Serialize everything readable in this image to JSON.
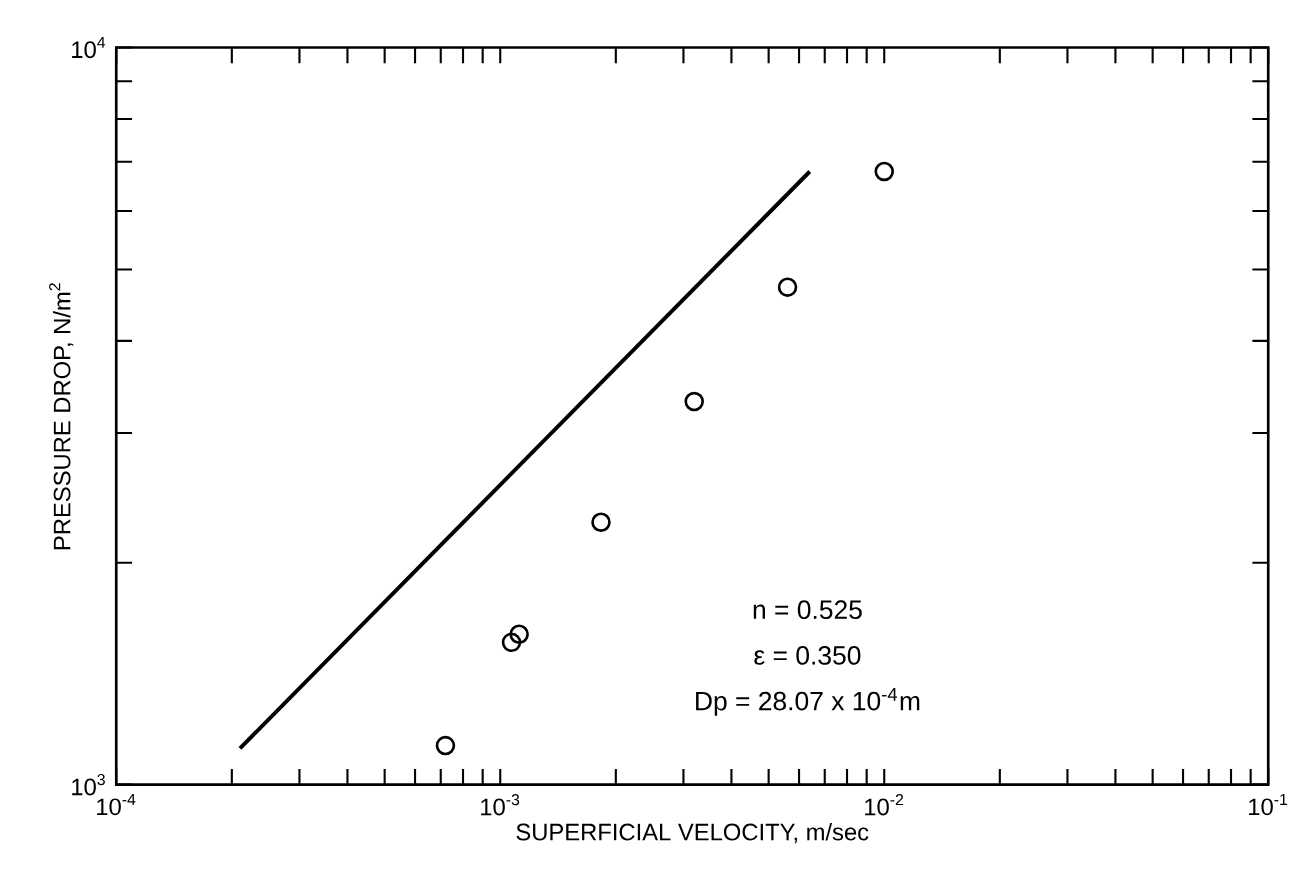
{
  "chart_data": {
    "type": "scatter",
    "xlabel": "SUPERFICIAL VELOCITY, m/sec",
    "ylabel": "PRESSURE DROP, N/m$^{2}$",
    "log": "xy",
    "xlim": [
      0.0001,
      0.1
    ],
    "ylim": [
      1000,
      10000
    ],
    "xticks": [
      {
        "value": 0.0001,
        "label": "10$^{-4}$"
      },
      {
        "value": 0.0002,
        "label": null
      },
      {
        "value": 0.0003,
        "label": null
      },
      {
        "value": 0.0004,
        "label": null
      },
      {
        "value": 0.0005,
        "label": null
      },
      {
        "value": 0.0006,
        "label": null
      },
      {
        "value": 0.0007,
        "label": null
      },
      {
        "value": 0.0008,
        "label": null
      },
      {
        "value": 0.0009,
        "label": null
      },
      {
        "value": 0.001,
        "label": "10$^{-3}$"
      },
      {
        "value": 0.002,
        "label": null
      },
      {
        "value": 0.003,
        "label": null
      },
      {
        "value": 0.004,
        "label": null
      },
      {
        "value": 0.005,
        "label": null
      },
      {
        "value": 0.006,
        "label": null
      },
      {
        "value": 0.007,
        "label": null
      },
      {
        "value": 0.008,
        "label": null
      },
      {
        "value": 0.009,
        "label": null
      },
      {
        "value": 0.01,
        "label": "10$^{-2}$"
      },
      {
        "value": 0.02,
        "label": null
      },
      {
        "value": 0.03,
        "label": null
      },
      {
        "value": 0.04,
        "label": null
      },
      {
        "value": 0.05,
        "label": null
      },
      {
        "value": 0.06,
        "label": null
      },
      {
        "value": 0.07,
        "label": null
      },
      {
        "value": 0.08,
        "label": null
      },
      {
        "value": 0.09,
        "label": null
      },
      {
        "value": 0.1,
        "label": "10$^{-1}$"
      }
    ],
    "yticks": [
      {
        "value": 1000,
        "label": "10$^{3}$"
      },
      {
        "value": 2000,
        "label": null
      },
      {
        "value": 3000,
        "label": null
      },
      {
        "value": 4000,
        "label": null
      },
      {
        "value": 5000,
        "label": null
      },
      {
        "value": 6000,
        "label": null
      },
      {
        "value": 7000,
        "label": null
      },
      {
        "value": 8000,
        "label": null
      },
      {
        "value": 9000,
        "label": null
      },
      {
        "value": 10000,
        "label": "10$^{4}$"
      }
    ],
    "grid": false,
    "series": [
      {
        "marker": "circle",
        "color": "#000000",
        "x": [
          0.00072,
          0.00107,
          0.00112,
          0.00183,
          0.0032,
          0.0056,
          0.01
        ],
        "values": [
          1130,
          1560,
          1600,
          2270,
          3310,
          4730,
          6790
        ]
      },
      {
        "type": "line",
        "marker": "none",
        "color": "#000000",
        "x": [
          0.00021,
          0.0064
        ],
        "values": [
          1120,
          6790
        ]
      }
    ],
    "annotations": [
      "n = 0.525",
      "ε = 0.350",
      "Dp = 28.07 x 10$^{-4}$m"
    ]
  }
}
